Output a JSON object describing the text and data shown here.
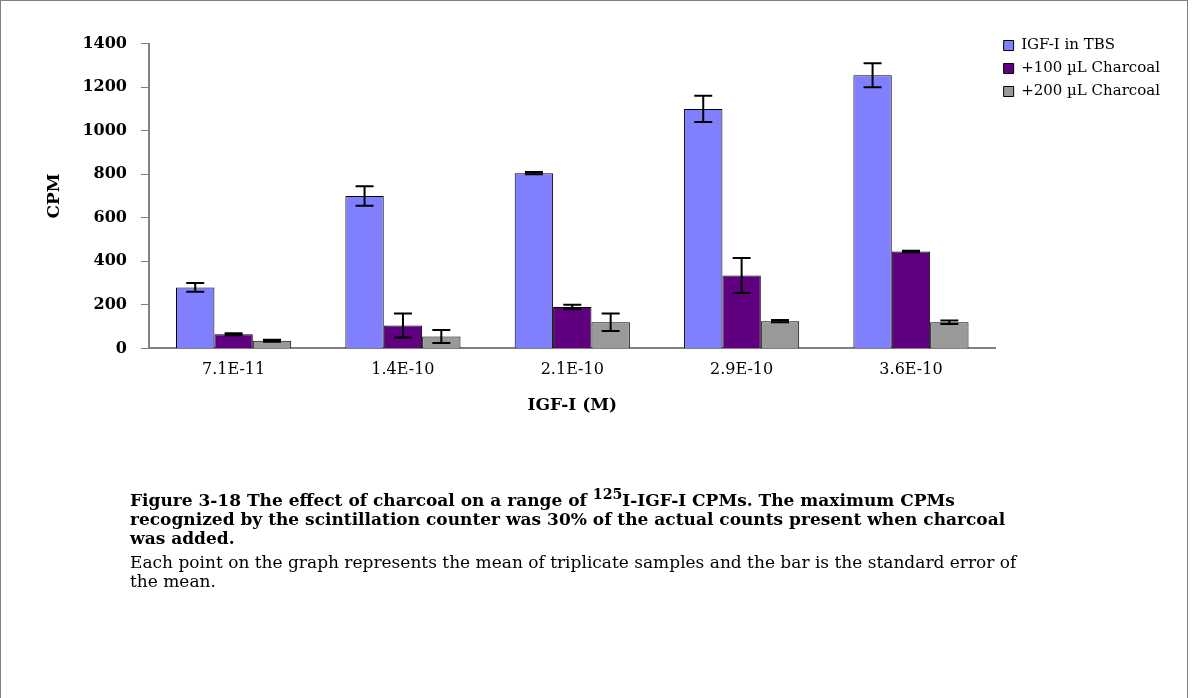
{
  "chart_data": {
    "type": "bar",
    "xlabel": "IGF-I (M)",
    "ylabel": "CPM",
    "categories": [
      "7.1E-11",
      "1.4E-10",
      "2.1E-10",
      "2.9E-10",
      "3.6E-10"
    ],
    "series": [
      {
        "name": "IGF-I in TBS",
        "color": "#8080ff",
        "values": [
          280,
          700,
          805,
          1100,
          1255
        ],
        "errors": [
          20,
          45,
          5,
          60,
          55
        ]
      },
      {
        "name": "+100 µL Charcoal",
        "color": "#600080",
        "values": [
          65,
          105,
          190,
          335,
          445
        ],
        "errors": [
          5,
          55,
          10,
          80,
          3
        ]
      },
      {
        "name": "+200 µL Charcoal",
        "color": "#999999",
        "values": [
          35,
          55,
          120,
          125,
          120
        ],
        "errors": [
          5,
          30,
          40,
          5,
          8
        ]
      }
    ],
    "ylim": [
      0,
      1400
    ],
    "yticks": [
      0,
      200,
      400,
      600,
      800,
      1000,
      1200,
      1400
    ],
    "grid": false,
    "legend": "top right",
    "annotations": [
      "Figure 3-18  The effect of charcoal on a range of $^{125}$I-IGF-I CPMs. The maximum CPMs recognized by the scintillation counter was 30% of the actual counts present when charcoal was added.",
      "Each point on the graph represents the mean of triplicate samples and the bar is the standard error of the mean."
    ]
  }
}
